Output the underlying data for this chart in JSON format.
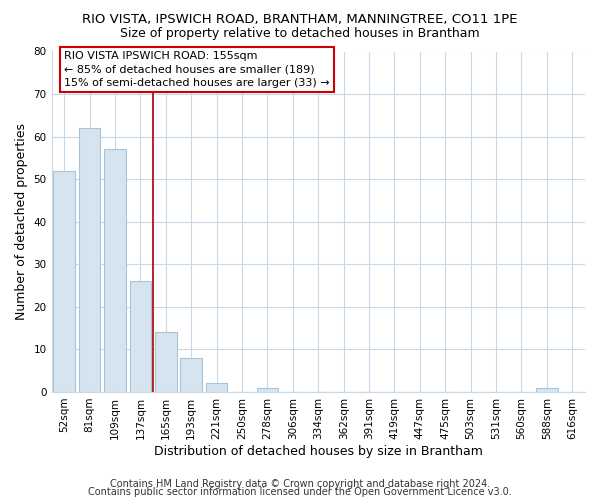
{
  "title": "RIO VISTA, IPSWICH ROAD, BRANTHAM, MANNINGTREE, CO11 1PE",
  "subtitle": "Size of property relative to detached houses in Brantham",
  "xlabel": "Distribution of detached houses by size in Brantham",
  "ylabel": "Number of detached properties",
  "bar_labels": [
    "52sqm",
    "81sqm",
    "109sqm",
    "137sqm",
    "165sqm",
    "193sqm",
    "221sqm",
    "250sqm",
    "278sqm",
    "306sqm",
    "334sqm",
    "362sqm",
    "391sqm",
    "419sqm",
    "447sqm",
    "475sqm",
    "503sqm",
    "531sqm",
    "560sqm",
    "588sqm",
    "616sqm"
  ],
  "bar_values": [
    52,
    62,
    57,
    26,
    14,
    8,
    2,
    0,
    1,
    0,
    0,
    0,
    0,
    0,
    0,
    0,
    0,
    0,
    0,
    1,
    0
  ],
  "bar_face_color": "#d6e4f0",
  "bar_edge_color": "#a8c4d8",
  "vline_index": 3.5,
  "vline_color": "#aa0000",
  "annotation_text": "RIO VISTA IPSWICH ROAD: 155sqm\n← 85% of detached houses are smaller (189)\n15% of semi-detached houses are larger (33) →",
  "annotation_box_facecolor": "#ffffff",
  "annotation_box_edgecolor": "#cc0000",
  "ylim": [
    0,
    80
  ],
  "yticks": [
    0,
    10,
    20,
    30,
    40,
    50,
    60,
    70,
    80
  ],
  "footer_line1": "Contains HM Land Registry data © Crown copyright and database right 2024.",
  "footer_line2": "Contains public sector information licensed under the Open Government Licence v3.0.",
  "bg_color": "#ffffff",
  "plot_bg_color": "#ffffff",
  "grid_color": "#c8d8e8",
  "title_fontsize": 9.5,
  "subtitle_fontsize": 9,
  "label_fontsize": 9,
  "tick_fontsize": 7.5,
  "annotation_fontsize": 8,
  "footer_fontsize": 7
}
